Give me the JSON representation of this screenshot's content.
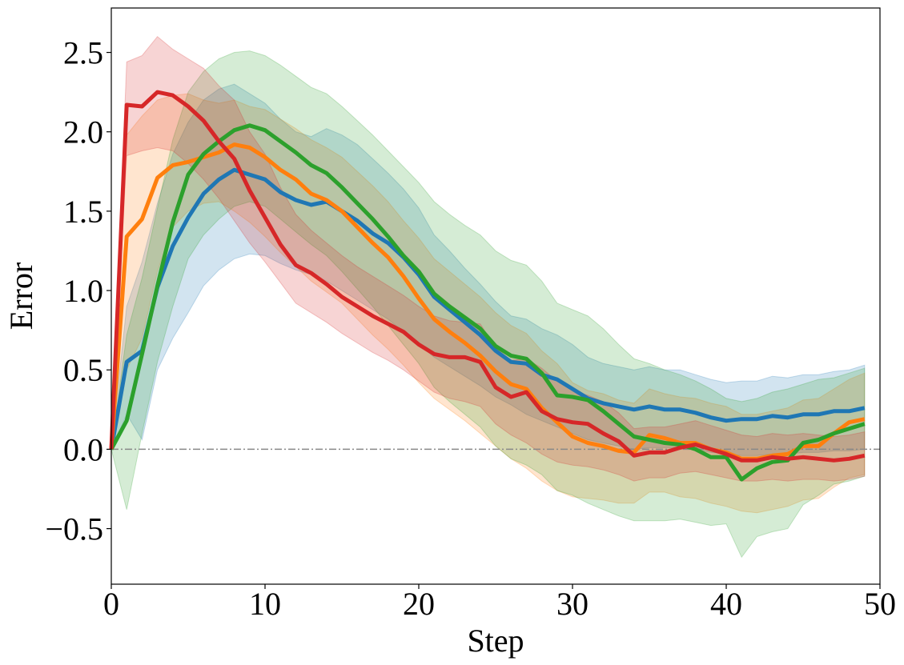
{
  "chart_data": {
    "type": "line",
    "xlabel": "Step",
    "ylabel": "Error",
    "xlim": [
      0,
      50
    ],
    "ylim": [
      -0.85,
      2.78
    ],
    "xticks": [
      0,
      10,
      20,
      30,
      40,
      50
    ],
    "xtick_labels": [
      "0",
      "10",
      "20",
      "30",
      "40",
      "50"
    ],
    "yticks": [
      -0.5,
      0.0,
      0.5,
      1.0,
      1.5,
      2.0,
      2.5
    ],
    "ytick_labels": [
      "−0.5",
      "0.0",
      "0.5",
      "1.0",
      "1.5",
      "2.0",
      "2.5"
    ],
    "grid": false,
    "legend": false,
    "reference_line": {
      "y": 0.0,
      "style": "dash-dot",
      "color": "#888888"
    },
    "x": [
      0,
      1,
      2,
      3,
      4,
      5,
      6,
      7,
      8,
      9,
      10,
      11,
      12,
      13,
      14,
      15,
      16,
      17,
      18,
      19,
      20,
      21,
      22,
      23,
      24,
      25,
      26,
      27,
      28,
      29,
      30,
      31,
      32,
      33,
      34,
      35,
      36,
      37,
      38,
      39,
      40,
      41,
      42,
      43,
      44,
      45,
      46,
      47,
      48,
      49
    ],
    "series": [
      {
        "color": "#1f77b4",
        "values": [
          0.0,
          0.55,
          0.62,
          1.02,
          1.28,
          1.46,
          1.61,
          1.7,
          1.76,
          1.73,
          1.7,
          1.62,
          1.57,
          1.54,
          1.56,
          1.5,
          1.44,
          1.36,
          1.3,
          1.21,
          1.1,
          0.96,
          0.88,
          0.8,
          0.72,
          0.62,
          0.55,
          0.54,
          0.47,
          0.44,
          0.38,
          0.32,
          0.29,
          0.27,
          0.25,
          0.27,
          0.25,
          0.25,
          0.23,
          0.2,
          0.18,
          0.19,
          0.19,
          0.21,
          0.2,
          0.22,
          0.22,
          0.24,
          0.24,
          0.26
        ],
        "lower": [
          0.0,
          0.22,
          0.06,
          0.5,
          0.7,
          0.86,
          1.03,
          1.13,
          1.2,
          1.23,
          1.22,
          1.17,
          1.13,
          1.1,
          1.06,
          1.0,
          0.94,
          0.88,
          0.82,
          0.74,
          0.66,
          0.58,
          0.52,
          0.46,
          0.4,
          0.33,
          0.28,
          0.22,
          0.18,
          0.14,
          0.1,
          0.06,
          0.04,
          0.02,
          0.0,
          0.01,
          0.01,
          0.01,
          0.0,
          -0.02,
          -0.03,
          -0.04,
          -0.04,
          -0.03,
          -0.03,
          -0.02,
          -0.02,
          -0.01,
          -0.01,
          0.0
        ],
        "upper": [
          0.0,
          0.9,
          1.18,
          1.55,
          1.86,
          2.06,
          2.2,
          2.27,
          2.3,
          2.24,
          2.18,
          2.08,
          2.0,
          1.97,
          2.02,
          1.98,
          1.92,
          1.83,
          1.74,
          1.64,
          1.52,
          1.35,
          1.25,
          1.14,
          1.04,
          0.93,
          0.84,
          0.82,
          0.76,
          0.72,
          0.66,
          0.58,
          0.54,
          0.52,
          0.5,
          0.52,
          0.5,
          0.5,
          0.47,
          0.44,
          0.42,
          0.43,
          0.43,
          0.46,
          0.45,
          0.47,
          0.47,
          0.49,
          0.5,
          0.53
        ]
      },
      {
        "color": "#ff7f0e",
        "values": [
          0.0,
          1.34,
          1.45,
          1.71,
          1.79,
          1.81,
          1.84,
          1.87,
          1.92,
          1.9,
          1.84,
          1.76,
          1.7,
          1.61,
          1.57,
          1.5,
          1.4,
          1.3,
          1.21,
          1.09,
          0.95,
          0.82,
          0.74,
          0.67,
          0.59,
          0.49,
          0.41,
          0.38,
          0.26,
          0.17,
          0.08,
          0.04,
          0.02,
          -0.01,
          -0.02,
          0.09,
          0.07,
          0.04,
          0.04,
          0.0,
          -0.02,
          -0.06,
          -0.06,
          -0.04,
          -0.03,
          0.02,
          0.02,
          0.1,
          0.17,
          0.19
        ],
        "lower": [
          0.0,
          0.5,
          0.7,
          1.12,
          1.4,
          1.5,
          1.55,
          1.56,
          1.5,
          1.43,
          1.34,
          1.24,
          1.15,
          1.06,
          0.99,
          0.92,
          0.82,
          0.72,
          0.63,
          0.53,
          0.42,
          0.32,
          0.25,
          0.18,
          0.1,
          0.02,
          -0.06,
          -0.12,
          -0.2,
          -0.26,
          -0.3,
          -0.31,
          -0.32,
          -0.34,
          -0.34,
          -0.27,
          -0.27,
          -0.3,
          -0.31,
          -0.34,
          -0.36,
          -0.39,
          -0.4,
          -0.38,
          -0.36,
          -0.32,
          -0.31,
          -0.24,
          -0.18,
          -0.16
        ],
        "upper": [
          0.0,
          1.98,
          2.1,
          2.2,
          2.23,
          2.24,
          2.2,
          2.18,
          2.2,
          2.16,
          2.14,
          2.08,
          2.02,
          1.95,
          1.9,
          1.84,
          1.75,
          1.66,
          1.56,
          1.44,
          1.33,
          1.2,
          1.12,
          1.04,
          0.96,
          0.86,
          0.78,
          0.73,
          0.62,
          0.54,
          0.42,
          0.37,
          0.35,
          0.31,
          0.29,
          0.38,
          0.35,
          0.33,
          0.32,
          0.29,
          0.27,
          0.22,
          0.22,
          0.24,
          0.26,
          0.31,
          0.32,
          0.38,
          0.44,
          0.48
        ]
      },
      {
        "color": "#2ca02c",
        "values": [
          0.0,
          0.18,
          0.6,
          1.03,
          1.43,
          1.73,
          1.86,
          1.94,
          2.01,
          2.04,
          2.01,
          1.94,
          1.87,
          1.79,
          1.74,
          1.65,
          1.55,
          1.45,
          1.34,
          1.22,
          1.12,
          0.98,
          0.9,
          0.83,
          0.76,
          0.65,
          0.59,
          0.57,
          0.48,
          0.34,
          0.33,
          0.31,
          0.24,
          0.16,
          0.08,
          0.06,
          0.04,
          0.03,
          0.0,
          -0.05,
          -0.05,
          -0.19,
          -0.12,
          -0.08,
          -0.07,
          0.04,
          0.06,
          0.1,
          0.13,
          0.16
        ],
        "lower": [
          0.0,
          -0.38,
          0.1,
          0.55,
          0.9,
          1.2,
          1.35,
          1.45,
          1.53,
          1.56,
          1.53,
          1.45,
          1.37,
          1.29,
          1.22,
          1.12,
          1.01,
          0.9,
          0.78,
          0.66,
          0.54,
          0.39,
          0.3,
          0.22,
          0.14,
          0.02,
          -0.06,
          -0.1,
          -0.16,
          -0.26,
          -0.29,
          -0.34,
          -0.38,
          -0.42,
          -0.45,
          -0.45,
          -0.45,
          -0.44,
          -0.46,
          -0.48,
          -0.47,
          -0.68,
          -0.55,
          -0.52,
          -0.5,
          -0.35,
          -0.29,
          -0.22,
          -0.2,
          -0.17
        ],
        "upper": [
          0.0,
          0.72,
          1.08,
          1.52,
          1.95,
          2.25,
          2.38,
          2.46,
          2.5,
          2.51,
          2.48,
          2.42,
          2.35,
          2.28,
          2.24,
          2.16,
          2.07,
          1.98,
          1.88,
          1.78,
          1.68,
          1.56,
          1.48,
          1.41,
          1.35,
          1.25,
          1.19,
          1.16,
          1.06,
          0.92,
          0.88,
          0.84,
          0.76,
          0.66,
          0.57,
          0.54,
          0.5,
          0.47,
          0.43,
          0.38,
          0.32,
          0.3,
          0.32,
          0.36,
          0.38,
          0.41,
          0.44,
          0.45,
          0.48,
          0.51
        ]
      },
      {
        "color": "#d62728",
        "values": [
          0.0,
          2.17,
          2.16,
          2.25,
          2.23,
          2.16,
          2.07,
          1.94,
          1.83,
          1.63,
          1.46,
          1.29,
          1.16,
          1.11,
          1.04,
          0.96,
          0.9,
          0.84,
          0.79,
          0.74,
          0.66,
          0.6,
          0.58,
          0.58,
          0.55,
          0.39,
          0.33,
          0.36,
          0.24,
          0.19,
          0.17,
          0.16,
          0.1,
          0.05,
          -0.04,
          -0.02,
          -0.02,
          0.01,
          0.03,
          0.0,
          -0.03,
          -0.07,
          -0.07,
          -0.05,
          -0.06,
          -0.05,
          -0.06,
          -0.07,
          -0.06,
          -0.04
        ],
        "lower": [
          0.0,
          1.85,
          1.88,
          1.9,
          1.88,
          1.8,
          1.7,
          1.58,
          1.44,
          1.3,
          1.18,
          1.05,
          0.92,
          0.86,
          0.8,
          0.73,
          0.67,
          0.61,
          0.56,
          0.5,
          0.43,
          0.36,
          0.32,
          0.3,
          0.27,
          0.16,
          0.09,
          0.04,
          -0.03,
          -0.08,
          -0.1,
          -0.11,
          -0.13,
          -0.16,
          -0.2,
          -0.18,
          -0.18,
          -0.15,
          -0.14,
          -0.16,
          -0.18,
          -0.2,
          -0.2,
          -0.19,
          -0.2,
          -0.19,
          -0.19,
          -0.2,
          -0.19,
          -0.17
        ],
        "upper": [
          0.0,
          2.44,
          2.48,
          2.6,
          2.52,
          2.46,
          2.4,
          2.29,
          2.2,
          2.0,
          1.86,
          1.65,
          1.48,
          1.38,
          1.3,
          1.22,
          1.15,
          1.09,
          1.03,
          0.97,
          0.9,
          0.84,
          0.81,
          0.8,
          0.79,
          0.64,
          0.56,
          0.57,
          0.51,
          0.43,
          0.37,
          0.34,
          0.3,
          0.23,
          0.13,
          0.14,
          0.14,
          0.16,
          0.18,
          0.15,
          0.12,
          0.09,
          0.08,
          0.1,
          0.09,
          0.1,
          0.09,
          0.08,
          0.09,
          0.11
        ]
      }
    ]
  }
}
